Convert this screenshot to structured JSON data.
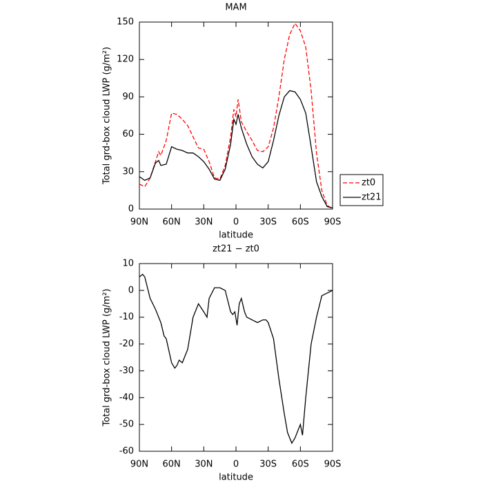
{
  "chart_data": [
    {
      "type": "line",
      "title": "MAM",
      "xlabel": "latitude",
      "ylabel": "Total grd-box cloud LWP (g/m²)",
      "x": [
        90,
        85,
        80,
        75,
        72,
        70,
        65,
        60,
        55,
        50,
        45,
        40,
        35,
        30,
        25,
        20,
        15,
        10,
        5,
        2,
        0,
        -2,
        -5,
        -10,
        -15,
        -20,
        -25,
        -30,
        -35,
        -40,
        -45,
        -50,
        -55,
        -60,
        -65,
        -70,
        -75,
        -80,
        -85,
        -90
      ],
      "series": [
        {
          "name": "zt0",
          "color": "#ff0000",
          "dash": true,
          "values": [
            20,
            18,
            25,
            38,
            46,
            43,
            55,
            77,
            76,
            72,
            67,
            58,
            49,
            48,
            38,
            25,
            24,
            35,
            58,
            80,
            74,
            88,
            70,
            62,
            55,
            47,
            46,
            50,
            65,
            90,
            120,
            140,
            149,
            143,
            130,
            95,
            45,
            15,
            3,
            0
          ]
        },
        {
          "name": "zt21",
          "color": "#000000",
          "dash": false,
          "values": [
            26,
            23,
            25,
            37,
            39,
            35,
            36,
            50,
            48,
            47,
            45,
            45,
            42,
            38,
            32,
            24,
            23,
            32,
            52,
            72,
            68,
            76,
            65,
            52,
            42,
            36,
            33,
            38,
            55,
            75,
            90,
            95,
            94,
            88,
            77,
            50,
            22,
            10,
            2,
            1
          ]
        }
      ],
      "xlim": [
        90,
        -90
      ],
      "xticks": [
        {
          "value": 90,
          "label": "90N"
        },
        {
          "value": 60,
          "label": "60N"
        },
        {
          "value": 30,
          "label": "30N"
        },
        0,
        {
          "value": -30,
          "label": "30S"
        },
        {
          "value": -60,
          "label": "60S"
        },
        {
          "value": -90,
          "label": "90S"
        }
      ],
      "ylim": [
        0,
        150
      ],
      "yticks": [
        0,
        30,
        60,
        90,
        120,
        150
      ],
      "legend": "right"
    },
    {
      "type": "line",
      "title": "zt21 − zt0",
      "xlabel": "latitude",
      "ylabel": "Total grd-box cloud LWP (g/m²)",
      "x": [
        90,
        87,
        85,
        80,
        75,
        70,
        67,
        65,
        60,
        57,
        55,
        53,
        50,
        45,
        40,
        35,
        30,
        27,
        25,
        20,
        15,
        10,
        5,
        3,
        1,
        -1,
        -3,
        -5,
        -8,
        -10,
        -15,
        -20,
        -25,
        -28,
        -30,
        -35,
        -40,
        -45,
        -48,
        -50,
        -52,
        -55,
        -58,
        -60,
        -62,
        -65,
        -70,
        -75,
        -80,
        -85,
        -90
      ],
      "series": [
        {
          "color": "#000000",
          "dash": false,
          "values": [
            5,
            6,
            5,
            -3,
            -7,
            -12,
            -17,
            -18,
            -27,
            -29,
            -28,
            -26,
            -27,
            -22,
            -10,
            -5,
            -8,
            -10,
            -3,
            1,
            1,
            0,
            -8,
            -9,
            -8,
            -13,
            -5,
            -3,
            -8,
            -10,
            -11,
            -12,
            -11,
            -11,
            -12,
            -18,
            -33,
            -46,
            -53,
            -55,
            -57,
            -55,
            -52,
            -50,
            -54,
            -40,
            -20,
            -10,
            -2,
            -1,
            0
          ]
        }
      ],
      "xlim": [
        90,
        -90
      ],
      "xticks": [
        {
          "value": 90,
          "label": "90N"
        },
        {
          "value": 60,
          "label": "60N"
        },
        {
          "value": 30,
          "label": "30N"
        },
        0,
        {
          "value": -30,
          "label": "30S"
        },
        {
          "value": -60,
          "label": "60S"
        },
        {
          "value": -90,
          "label": "90S"
        }
      ],
      "ylim": [
        -60,
        10
      ],
      "yticks": [
        -60,
        -50,
        -40,
        -30,
        -20,
        -10,
        0,
        10
      ]
    }
  ]
}
